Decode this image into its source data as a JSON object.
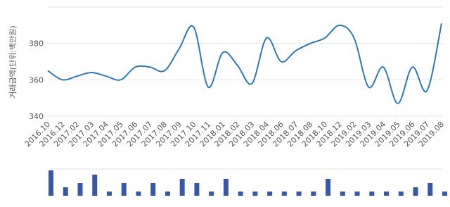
{
  "chart_data": {
    "type": "line",
    "y_label": "거래금액(단위:백만원)",
    "categories": [
      "2016.10",
      "2016.12",
      "2017.02",
      "2017.03",
      "2017.04",
      "2017.05",
      "2017.06",
      "2017.07",
      "2017.08",
      "2017.09",
      "2017.10",
      "2017.11",
      "2018.01",
      "2018.02",
      "2018.03",
      "2018.04",
      "2018.06",
      "2018.07",
      "2018.08",
      "2018.10",
      "2018.12",
      "2019.02",
      "2019.03",
      "2019.04",
      "2019.05",
      "2019.06",
      "2019.07",
      "2019.08"
    ],
    "values": [
      365,
      360,
      362,
      364,
      362,
      360,
      367,
      367,
      365,
      377,
      389,
      356,
      375,
      368,
      358,
      383,
      370,
      376,
      380,
      383,
      390,
      383,
      356,
      367,
      347,
      367,
      354,
      391
    ],
    "volumes": [
      6,
      2,
      3,
      5,
      1,
      3,
      1,
      3,
      1,
      4,
      3,
      1,
      4,
      1,
      1,
      1,
      1,
      1,
      1,
      4,
      1,
      1,
      1,
      1,
      1,
      2,
      3,
      1
    ],
    "color": "#2e78b4",
    "bar_color": "#3758a8",
    "ylim": [
      340,
      400
    ],
    "yticks": [
      340,
      360,
      380
    ],
    "grid": true
  }
}
